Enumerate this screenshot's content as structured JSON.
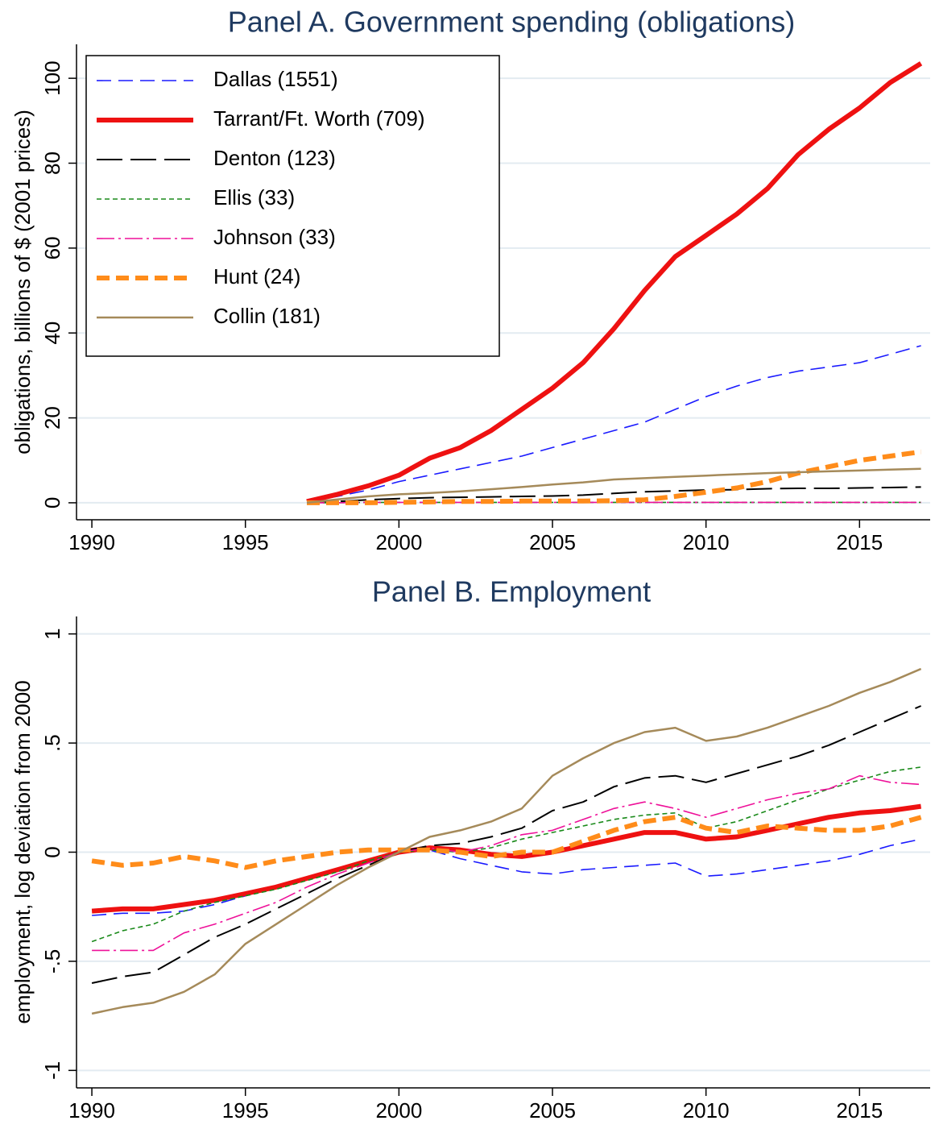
{
  "chart_data": [
    {
      "type": "line",
      "title": "Panel A. Government spending (obligations)",
      "y_label": "obligations, billions of $ (2001 prices)",
      "x": [
        1997,
        1998,
        1999,
        2000,
        2001,
        2002,
        2003,
        2004,
        2005,
        2006,
        2007,
        2008,
        2009,
        2010,
        2011,
        2012,
        2013,
        2014,
        2015,
        2016,
        2017
      ],
      "xlim": [
        1989.5,
        2017.3
      ],
      "xticks": [
        1990,
        1995,
        2000,
        2005,
        2010,
        2015
      ],
      "ylim": [
        -4,
        108
      ],
      "yticks": [
        0,
        20,
        40,
        60,
        80,
        100
      ],
      "grid": true,
      "legend": "upper left",
      "series": [
        {
          "name": "Dallas (1551)",
          "color": "#1a1aff",
          "values": [
            0.3,
            1.5,
            3,
            5,
            6.5,
            8,
            9.5,
            11,
            13,
            15,
            17,
            19,
            22,
            25,
            27.5,
            29.5,
            31,
            32,
            33,
            35,
            37
          ]
        },
        {
          "name": "Tarrant/Ft. Worth (709)",
          "color": "#ee1111",
          "values": [
            0.3,
            2,
            4,
            6.5,
            10.5,
            13,
            17,
            22,
            27,
            33,
            41,
            50,
            58,
            63,
            68,
            74,
            82,
            88,
            93,
            99,
            103.5
          ]
        },
        {
          "name": "Denton (123)",
          "color": "#000000",
          "values": [
            0,
            0.3,
            0.7,
            1,
            1.2,
            1.3,
            1.4,
            1.5,
            1.6,
            1.8,
            2.2,
            2.6,
            2.8,
            3,
            3.1,
            3.3,
            3.4,
            3.4,
            3.5,
            3.6,
            3.7
          ]
        },
        {
          "name": "Ellis (33)",
          "color": "#1a8a1a",
          "values": [
            0,
            0,
            0.1,
            0.1,
            0.1,
            0.1,
            0.1,
            0.1,
            0.1,
            0.1,
            0.1,
            0.1,
            0.1,
            0.1,
            0.1,
            0.1,
            0.1,
            0.1,
            0.1,
            0.1,
            0.1
          ]
        },
        {
          "name": "Johnson (33)",
          "color": "#ee1199",
          "values": [
            0,
            0,
            0.1,
            0.1,
            0.1,
            0.1,
            0.1,
            0.1,
            0.1,
            0.1,
            0.1,
            0.1,
            0.1,
            0.1,
            0.1,
            0.1,
            0.1,
            0.1,
            0.1,
            0.1,
            0.1
          ]
        },
        {
          "name": "Hunt (24)",
          "color": "#ff8c1a",
          "values": [
            0,
            0,
            0,
            0.1,
            0.2,
            0.3,
            0.3,
            0.4,
            0.4,
            0.4,
            0.5,
            0.7,
            1.5,
            2.5,
            3.5,
            5,
            7,
            8.5,
            10,
            11,
            12
          ]
        },
        {
          "name": "Collin (181)",
          "color": "#a58a5a",
          "values": [
            0,
            0.8,
            1.5,
            2,
            2.3,
            2.7,
            3.2,
            3.7,
            4.3,
            4.8,
            5.5,
            5.8,
            6.1,
            6.4,
            6.7,
            7,
            7.2,
            7.4,
            7.6,
            7.8,
            8
          ]
        }
      ]
    },
    {
      "type": "line",
      "title": "Panel B. Employment",
      "y_label": "employment, log deviation from 2000",
      "x": [
        1990,
        1991,
        1992,
        1993,
        1994,
        1995,
        1996,
        1997,
        1998,
        1999,
        2000,
        2001,
        2002,
        2003,
        2004,
        2005,
        2006,
        2007,
        2008,
        2009,
        2010,
        2011,
        2012,
        2013,
        2014,
        2015,
        2016,
        2017
      ],
      "xlim": [
        1989.5,
        2017.3
      ],
      "xticks": [
        1990,
        1995,
        2000,
        2005,
        2010,
        2015
      ],
      "ylim": [
        -1.08,
        1.08
      ],
      "yticks": [
        {
          "value": -1,
          "label": "-1"
        },
        {
          "value": -0.5,
          "label": "-.5"
        },
        0,
        {
          "value": 0.5,
          "label": ".5"
        },
        1
      ],
      "grid": true,
      "series": [
        {
          "color": "#1a1aff",
          "values": [
            -0.29,
            -0.28,
            -0.28,
            -0.27,
            -0.24,
            -0.2,
            -0.16,
            -0.12,
            -0.08,
            -0.04,
            0,
            0.01,
            -0.03,
            -0.06,
            -0.09,
            -0.1,
            -0.08,
            -0.07,
            -0.06,
            -0.05,
            -0.11,
            -0.1,
            -0.08,
            -0.06,
            -0.04,
            -0.01,
            0.03,
            0.06
          ]
        },
        {
          "color": "#ee1111",
          "values": [
            -0.27,
            -0.26,
            -0.26,
            -0.24,
            -0.22,
            -0.19,
            -0.16,
            -0.12,
            -0.08,
            -0.04,
            0,
            0.02,
            0.01,
            -0.01,
            -0.02,
            0,
            0.03,
            0.06,
            0.09,
            0.09,
            0.06,
            0.07,
            0.1,
            0.13,
            0.16,
            0.18,
            0.19,
            0.21
          ]
        },
        {
          "color": "#000000",
          "values": [
            -0.6,
            -0.57,
            -0.55,
            -0.47,
            -0.39,
            -0.33,
            -0.26,
            -0.19,
            -0.12,
            -0.06,
            0,
            0.03,
            0.04,
            0.07,
            0.11,
            0.19,
            0.23,
            0.3,
            0.34,
            0.35,
            0.32,
            0.36,
            0.4,
            0.44,
            0.49,
            0.55,
            0.61,
            0.67
          ]
        },
        {
          "color": "#1a8a1a",
          "values": [
            -0.41,
            -0.36,
            -0.33,
            -0.27,
            -0.23,
            -0.2,
            -0.17,
            -0.13,
            -0.09,
            -0.04,
            0,
            0.01,
            0,
            0.02,
            0.06,
            0.09,
            0.12,
            0.15,
            0.17,
            0.18,
            0.11,
            0.14,
            0.19,
            0.24,
            0.29,
            0.33,
            0.37,
            0.39
          ]
        },
        {
          "color": "#ee1199",
          "values": [
            -0.45,
            -0.45,
            -0.45,
            -0.37,
            -0.33,
            -0.28,
            -0.23,
            -0.16,
            -0.1,
            -0.05,
            0,
            0.02,
            0,
            0.03,
            0.08,
            0.1,
            0.15,
            0.2,
            0.23,
            0.2,
            0.16,
            0.2,
            0.24,
            0.27,
            0.29,
            0.35,
            0.32,
            0.31
          ]
        },
        {
          "color": "#ff8c1a",
          "values": [
            -0.04,
            -0.06,
            -0.05,
            -0.02,
            -0.04,
            -0.07,
            -0.04,
            -0.02,
            0,
            0.01,
            0.01,
            0.01,
            0,
            -0.02,
            0,
            0,
            0.05,
            0.1,
            0.14,
            0.16,
            0.11,
            0.09,
            0.12,
            0.11,
            0.1,
            0.1,
            0.12,
            0.16
          ]
        },
        {
          "color": "#a58a5a",
          "values": [
            -0.74,
            -0.71,
            -0.69,
            -0.64,
            -0.56,
            -0.42,
            -0.33,
            -0.24,
            -0.15,
            -0.07,
            0,
            0.07,
            0.1,
            0.14,
            0.2,
            0.35,
            0.43,
            0.5,
            0.55,
            0.57,
            0.51,
            0.53,
            0.57,
            0.62,
            0.67,
            0.73,
            0.78,
            0.84
          ]
        }
      ]
    }
  ]
}
